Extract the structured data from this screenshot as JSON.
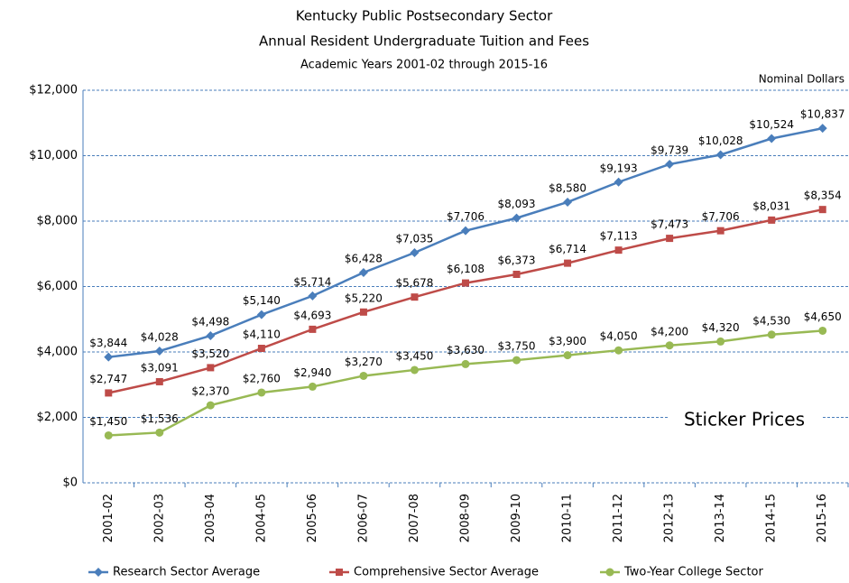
{
  "chart_data": {
    "type": "line",
    "title": "Kentucky Public Postsecondary Sector",
    "subtitle": "Annual Resident Undergraduate Tuition and Fees",
    "period": "Academic Years 2001-02 through 2015-16",
    "annotations": [
      "Nominal Dollars",
      "Sticker Prices"
    ],
    "categories": [
      "2001-02",
      "2002-03",
      "2003-04",
      "2004-05",
      "2005-06",
      "2006-07",
      "2007-08",
      "2008-09",
      "2009-10",
      "2010-11",
      "2011-12",
      "2012-13",
      "2013-14",
      "2014-15",
      "2015-16"
    ],
    "series": [
      {
        "name": "Research Sector Average",
        "color": "#4a7ebb",
        "marker": "diamond",
        "values": [
          3844,
          4028,
          4498,
          5140,
          5714,
          6428,
          7035,
          7706,
          8093,
          8580,
          9193,
          9739,
          10028,
          10524,
          10837
        ],
        "value_labels": [
          "$3,844",
          "$4,028",
          "$4,498",
          "$5,140",
          "$5,714",
          "$6,428",
          "$7,035",
          "$7,706",
          "$8,093",
          "$8,580",
          "$9,193",
          "$9,739",
          "$10,028",
          "$10,524",
          "$10,837"
        ]
      },
      {
        "name": "Comprehensive Sector Average",
        "color": "#be4b48",
        "marker": "square",
        "values": [
          2747,
          3091,
          3520,
          4110,
          4693,
          5220,
          5678,
          6108,
          6373,
          6714,
          7113,
          7473,
          7706,
          8031,
          8354
        ],
        "value_labels": [
          "$2,747",
          "$3,091",
          "$3,520",
          "$4,110",
          "$4,693",
          "$5,220",
          "$5,678",
          "$6,108",
          "$6,373",
          "$6,714",
          "$7,113",
          "$7,473",
          "$7,706",
          "$8,031",
          "$8,354"
        ]
      },
      {
        "name": "Two-Year College Sector",
        "color": "#98b954",
        "marker": "circle",
        "values": [
          1450,
          1536,
          2370,
          2760,
          2940,
          3270,
          3450,
          3630,
          3750,
          3900,
          4050,
          4200,
          4320,
          4530,
          4650
        ],
        "value_labels": [
          "$1,450",
          "$1,536",
          "$2,370",
          "$2,760",
          "$2,940",
          "$3,270",
          "$3,450",
          "$3,630",
          "$3,750",
          "$3,900",
          "$4,050",
          "$4,200",
          "$4,320",
          "$4,530",
          "$4,650"
        ]
      }
    ],
    "ylim": [
      0,
      12000
    ],
    "yticks": [
      {
        "value": 0,
        "label": "$0"
      },
      {
        "value": 2000,
        "label": "$2,000"
      },
      {
        "value": 4000,
        "label": "$4,000"
      },
      {
        "value": 6000,
        "label": "$6,000"
      },
      {
        "value": 8000,
        "label": "$8,000"
      },
      {
        "value": 10000,
        "label": "$10,000"
      },
      {
        "value": 12000,
        "label": "$12,000"
      }
    ],
    "grid": true,
    "legend": "bottom"
  }
}
